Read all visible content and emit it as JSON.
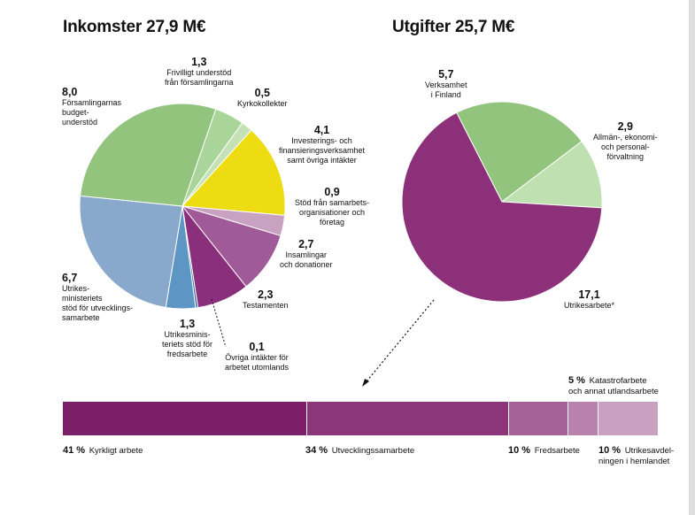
{
  "chart_data": [
    {
      "type": "pie",
      "title": "Inkomster 27,9 M€",
      "slices": [
        {
          "value_label": "1,3",
          "label_lines": [
            "Frivilligt understöd",
            "från församlingarna"
          ],
          "value": 1.3,
          "color": "#a9d59a"
        },
        {
          "value_label": "0,5",
          "label_lines": [
            "Kyrkokollekter"
          ],
          "value": 0.5,
          "color": "#c4e2b6"
        },
        {
          "value_label": "4,1",
          "label_lines": [
            "Investerings- och",
            "finansieringsverksamhet",
            "samt övriga intäkter"
          ],
          "value": 4.1,
          "color": "#eedc12"
        },
        {
          "value_label": "0,9",
          "label_lines": [
            "Stöd från samarbets-",
            "organisationer och",
            "företag"
          ],
          "value": 0.9,
          "color": "#c9a2c1"
        },
        {
          "value_label": "2,7",
          "label_lines": [
            "Insamlingar",
            "och donationer"
          ],
          "value": 2.7,
          "color": "#a05a97"
        },
        {
          "value_label": "2,3",
          "label_lines": [
            "Testamenten"
          ],
          "value": 2.3,
          "color": "#8a2f7c"
        },
        {
          "value_label": "0,1",
          "label_lines": [
            "Övriga intäkter för",
            "arbetet utomlands"
          ],
          "value": 0.1,
          "color": "#2f6e9e"
        },
        {
          "value_label": "1,3",
          "label_lines": [
            "Utrikesminis-",
            "teriets stöd för",
            "fredsarbete"
          ],
          "value": 1.3,
          "color": "#5d95c5"
        },
        {
          "value_label": "6,7",
          "label_lines": [
            "Utrikes-",
            "ministeriets",
            "stöd för utvecklings-",
            "samarbete"
          ],
          "value": 6.7,
          "color": "#88a9cb"
        },
        {
          "value_label": "8,0",
          "label_lines": [
            "Församlingarnas",
            "budget-",
            "understöd"
          ],
          "value": 8.0,
          "color": "#92c47e"
        }
      ]
    },
    {
      "type": "pie",
      "title": "Utgifter 25,7 M€",
      "slices": [
        {
          "value_label": "5,7",
          "label_lines": [
            "Verksamhet",
            "i Finland"
          ],
          "value": 5.7,
          "color": "#92c47e"
        },
        {
          "value_label": "2,9",
          "label_lines": [
            "Allmän-, ekonomi-",
            "och personal-",
            "förvaltning"
          ],
          "value": 2.9,
          "color": "#bfe0b0"
        },
        {
          "value_label": "17,1",
          "label_lines": [
            "Utrikesarbete*"
          ],
          "value": 17.1,
          "color": "#8b3079"
        }
      ]
    },
    {
      "type": "bar",
      "orientation": "horizontal-stacked",
      "segments": [
        {
          "pct_label": "41 %",
          "label": "Kyrkligt arbete",
          "value": 41,
          "color": "#7a1f68"
        },
        {
          "pct_label": "34 %",
          "label": "Utvecklingssamarbete",
          "value": 34,
          "color": "#8c3579"
        },
        {
          "pct_label": "10 %",
          "label": "Fredsarbete",
          "value": 10,
          "color": "#a56197"
        },
        {
          "pct_label": "5 %",
          "label_lines": [
            "Katastrofarbete",
            "och annat utlandsarbete"
          ],
          "value": 5,
          "color": "#b981ae"
        },
        {
          "pct_label": "10 %",
          "label_lines": [
            "Utrikesavdel-",
            "ningen i hemlandet"
          ],
          "value": 10,
          "color": "#c9a0c2"
        }
      ]
    }
  ]
}
